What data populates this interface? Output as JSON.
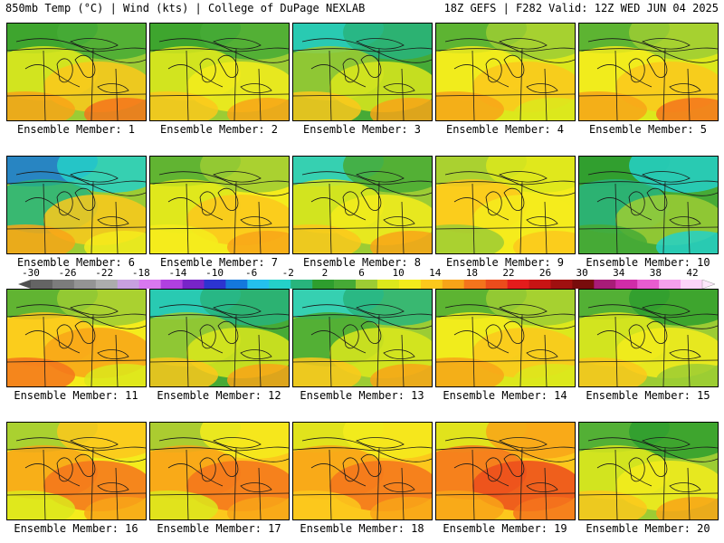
{
  "header": {
    "left": "850mb Temp (°C) | Wind (kts) | College of DuPage NEXLAB",
    "right": "18Z GEFS | F282 Valid: 12Z WED JUN 04 2025"
  },
  "panels": [
    {
      "label": "Ensemble Member: 1",
      "base": "#9ccc34",
      "colors": [
        "#2e9e2e",
        "#46aa36",
        "#dce81c",
        "#fcc81c",
        "#f8a418",
        "#f4741c"
      ]
    },
    {
      "label": "Ensemble Member: 2",
      "base": "#9ccc34",
      "colors": [
        "#2e9e2e",
        "#46aa36",
        "#dce81c",
        "#f4ec1c",
        "#fcc81c",
        "#f8a418"
      ]
    },
    {
      "label": "Ensemble Member: 3",
      "base": "#46aa36",
      "colors": [
        "#24d0c8",
        "#28b47c",
        "#9ccc34",
        "#dce81c",
        "#fcc81c",
        "#f8a418"
      ]
    },
    {
      "label": "Ensemble Member: 4",
      "base": "#dce81c",
      "colors": [
        "#46aa36",
        "#9ccc34",
        "#f4ec1c",
        "#fcc81c",
        "#f8a418",
        "#dce81c"
      ]
    },
    {
      "label": "Ensemble Member: 5",
      "base": "#dce81c",
      "colors": [
        "#46aa36",
        "#9ccc34",
        "#f4ec1c",
        "#fcc81c",
        "#f8a418",
        "#f4741c"
      ]
    },
    {
      "label": "Ensemble Member: 6",
      "base": "#9ccc34",
      "colors": [
        "#1478dc",
        "#24d0c8",
        "#28b47c",
        "#fcc81c",
        "#f8a418",
        "#f4ec1c"
      ]
    },
    {
      "label": "Ensemble Member: 7",
      "base": "#f4ec1c",
      "colors": [
        "#46aa36",
        "#9ccc34",
        "#dce81c",
        "#fcc81c",
        "#f4ec1c",
        "#f8a418"
      ]
    },
    {
      "label": "Ensemble Member: 8",
      "base": "#9ccc34",
      "colors": [
        "#24d0c8",
        "#46aa36",
        "#dce81c",
        "#f4ec1c",
        "#fcc81c",
        "#f8a418"
      ]
    },
    {
      "label": "Ensemble Member: 9",
      "base": "#f4ec1c",
      "colors": [
        "#9ccc34",
        "#dce81c",
        "#fcc81c",
        "#f4ec1c",
        "#9ccc34",
        "#fcc81c"
      ]
    },
    {
      "label": "Ensemble Member: 10",
      "base": "#46aa36",
      "colors": [
        "#2e9e2e",
        "#24d0c8",
        "#28b47c",
        "#9ccc34",
        "#46aa36",
        "#24d0c8"
      ]
    },
    {
      "label": "Ensemble Member: 11",
      "base": "#f4ec1c",
      "colors": [
        "#46aa36",
        "#9ccc34",
        "#fcc81c",
        "#f8a418",
        "#f4741c",
        "#dce81c"
      ]
    },
    {
      "label": "Ensemble Member: 12",
      "base": "#46aa36",
      "colors": [
        "#24d0c8",
        "#28b47c",
        "#9ccc34",
        "#dce81c",
        "#fcc81c",
        "#f8a418"
      ]
    },
    {
      "label": "Ensemble Member: 13",
      "base": "#9ccc34",
      "colors": [
        "#24d0c8",
        "#28b47c",
        "#46aa36",
        "#dce81c",
        "#fcc81c",
        "#f8a418"
      ]
    },
    {
      "label": "Ensemble Member: 14",
      "base": "#dce81c",
      "colors": [
        "#46aa36",
        "#9ccc34",
        "#f4ec1c",
        "#fcc81c",
        "#f8a418",
        "#dce81c"
      ]
    },
    {
      "label": "Ensemble Member: 15",
      "base": "#9ccc34",
      "colors": [
        "#46aa36",
        "#2e9e2e",
        "#dce81c",
        "#f4ec1c",
        "#fcc81c",
        "#9ccc34"
      ]
    },
    {
      "label": "Ensemble Member: 16",
      "base": "#f4ec1c",
      "colors": [
        "#9ccc34",
        "#fcc81c",
        "#f8a418",
        "#f4741c",
        "#dce81c",
        "#f8a418"
      ]
    },
    {
      "label": "Ensemble Member: 17",
      "base": "#fcc81c",
      "colors": [
        "#9ccc34",
        "#f4ec1c",
        "#f8a418",
        "#f4741c",
        "#dce81c",
        "#f8a418"
      ]
    },
    {
      "label": "Ensemble Member: 18",
      "base": "#fcc81c",
      "colors": [
        "#dce81c",
        "#f4ec1c",
        "#f8a418",
        "#f4741c",
        "#fcc81c",
        "#f8a418"
      ]
    },
    {
      "label": "Ensemble Member: 19",
      "base": "#fcc81c",
      "colors": [
        "#dce81c",
        "#f8a418",
        "#f4741c",
        "#ec4c1c",
        "#f8a418",
        "#f4741c"
      ]
    },
    {
      "label": "Ensemble Member: 20",
      "base": "#9ccc34",
      "colors": [
        "#46aa36",
        "#2e9e2e",
        "#dce81c",
        "#f4ec1c",
        "#fcc81c",
        "#f8a418"
      ]
    }
  ],
  "colorbar": {
    "labels": [
      "-30",
      "-26",
      "-22",
      "-18",
      "-14",
      "-10",
      "-6",
      "-2",
      "2",
      "6",
      "10",
      "14",
      "18",
      "22",
      "26",
      "30",
      "34",
      "38",
      "42"
    ],
    "colors": [
      "#646464",
      "#7c7c7c",
      "#949494",
      "#acacac",
      "#c8a0e0",
      "#d878f0",
      "#b040e0",
      "#7824c8",
      "#2c34d0",
      "#1478dc",
      "#24c0ec",
      "#24d0c8",
      "#28b47c",
      "#2e9e2e",
      "#46aa36",
      "#9ccc34",
      "#dce81c",
      "#f4ec1c",
      "#fcc81c",
      "#f8a418",
      "#f4741c",
      "#ec4c1c",
      "#e41c1c",
      "#c81414",
      "#a01010",
      "#780c0c",
      "#a81c78",
      "#d02ca8",
      "#e85cd0",
      "#f4a0ec",
      "#fcd4f8"
    ]
  }
}
